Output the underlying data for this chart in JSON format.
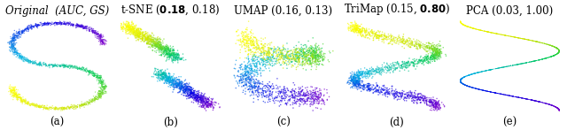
{
  "panels": [
    {
      "label": "(a)",
      "title": "Original  (AUC, GS)",
      "bold_parts": []
    },
    {
      "label": "(b)",
      "title": "t-SNE (0.18, 0.18)",
      "bold_parts": [
        "0.18"
      ]
    },
    {
      "label": "(c)",
      "title": "UMAP (0.16, 0.13)",
      "bold_parts": []
    },
    {
      "label": "(d)",
      "title": "TriMap (0.15, 0.80)",
      "bold_parts": [
        "0.80"
      ]
    },
    {
      "label": "(e)",
      "title": "PCA (0.03, 1.00)",
      "bold_parts": []
    }
  ],
  "n_points": 2000,
  "colormap": "plasma_r",
  "fig_background": "white",
  "label_fontsize": 8.5,
  "title_fontsize": 8.5,
  "point_sizes": [
    1.0,
    1.2,
    1.2,
    1.2,
    0.5
  ],
  "alphas": [
    0.6,
    0.65,
    0.65,
    0.65,
    1.0
  ]
}
